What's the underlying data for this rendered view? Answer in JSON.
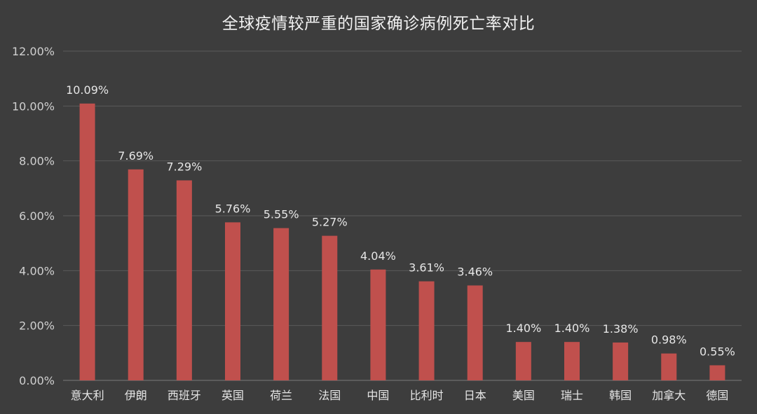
{
  "chart_data": {
    "type": "bar",
    "title": "全球疫情较严重的国家确诊病例死亡率对比",
    "xlabel": "",
    "ylabel": "",
    "categories": [
      "意大利",
      "伊朗",
      "西班牙",
      "英国",
      "荷兰",
      "法国",
      "中国",
      "比利时",
      "日本",
      "美国",
      "瑞士",
      "韩国",
      "加拿大",
      "德国"
    ],
    "values": [
      10.09,
      7.69,
      7.29,
      5.76,
      5.55,
      5.27,
      4.04,
      3.61,
      3.46,
      1.4,
      1.4,
      1.38,
      0.98,
      0.55
    ],
    "data_labels": [
      "10.09%",
      "7.69%",
      "7.29%",
      "5.76%",
      "5.55%",
      "5.27%",
      "4.04%",
      "3.61%",
      "3.46%",
      "1.40%",
      "1.40%",
      "1.38%",
      "0.98%",
      "0.55%"
    ],
    "ylim": [
      0,
      12
    ],
    "yticks": [
      0,
      2,
      4,
      6,
      8,
      10,
      12
    ],
    "ytick_labels": [
      "0.00%",
      "2.00%",
      "4.00%",
      "6.00%",
      "8.00%",
      "10.00%",
      "12.00%"
    ],
    "grid": true,
    "legend": "none",
    "colors": {
      "background": "#3d3d3d",
      "bar": "#c0504d",
      "grid": "#5a5a5a",
      "text": "#e6e6e6"
    }
  }
}
